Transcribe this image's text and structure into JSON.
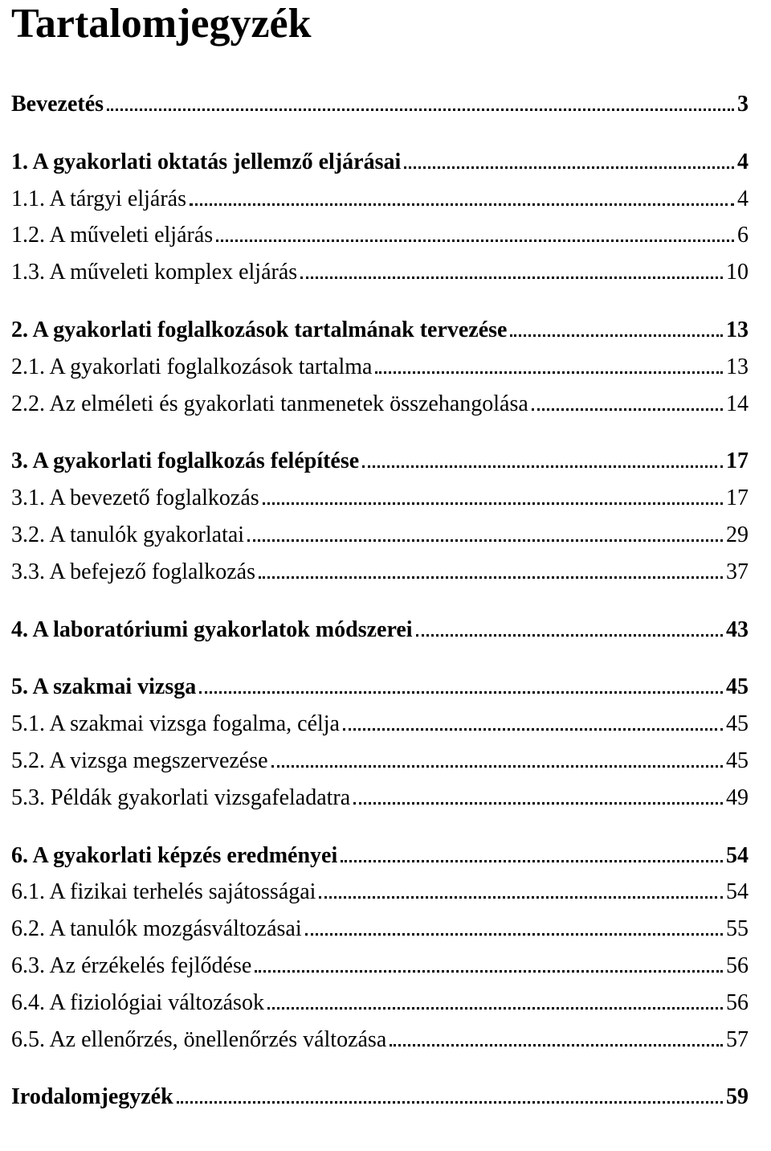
{
  "title": "Tartalomjegyzék",
  "text_color": "#000000",
  "background_color": "#ffffff",
  "title_fontsize": 52,
  "entry_fontsize": 28,
  "dot_leader_color": "#000000",
  "entries": [
    {
      "label": "Bevezetés",
      "page": "3",
      "bold": true,
      "gap_before": false
    },
    {
      "label": "1. A gyakorlati oktatás jellemző eljárásai",
      "page": "4",
      "bold": true,
      "gap_before": true
    },
    {
      "label": "1.1. A tárgyi eljárás",
      "page": "4",
      "bold": false,
      "gap_before": false
    },
    {
      "label": "1.2. A műveleti eljárás",
      "page": "6",
      "bold": false,
      "gap_before": false
    },
    {
      "label": "1.3. A műveleti komplex eljárás",
      "page": "10",
      "bold": false,
      "gap_before": false
    },
    {
      "label": "2. A gyakorlati foglalkozások tartalmának tervezése",
      "page": "13",
      "bold": true,
      "gap_before": true
    },
    {
      "label": "2.1. A gyakorlati foglalkozások tartalma",
      "page": "13",
      "bold": false,
      "gap_before": false
    },
    {
      "label": "2.2. Az elméleti és gyakorlati tanmenetek összehangolása",
      "page": "14",
      "bold": false,
      "gap_before": false
    },
    {
      "label": "3. A gyakorlati foglalkozás felépítése",
      "page": "17",
      "bold": true,
      "gap_before": true
    },
    {
      "label": "3.1. A bevezető foglalkozás",
      "page": "17",
      "bold": false,
      "gap_before": false
    },
    {
      "label": "3.2. A tanulók gyakorlatai",
      "page": "29",
      "bold": false,
      "gap_before": false
    },
    {
      "label": "3.3. A befejező foglalkozás",
      "page": "37",
      "bold": false,
      "gap_before": false
    },
    {
      "label": "4. A laboratóriumi gyakorlatok módszerei",
      "page": "43",
      "bold": true,
      "gap_before": true
    },
    {
      "label": "5. A szakmai vizsga",
      "page": "45",
      "bold": true,
      "gap_before": true
    },
    {
      "label": "5.1. A szakmai vizsga fogalma, célja",
      "page": "45",
      "bold": false,
      "gap_before": false
    },
    {
      "label": "5.2. A vizsga megszervezése",
      "page": "45",
      "bold": false,
      "gap_before": false
    },
    {
      "label": "5.3. Példák gyakorlati vizsgafeladatra",
      "page": "49",
      "bold": false,
      "gap_before": false
    },
    {
      "label": "6. A gyakorlati képzés eredményei",
      "page": "54",
      "bold": true,
      "gap_before": true
    },
    {
      "label": "6.1. A fizikai terhelés sajátosságai",
      "page": "54",
      "bold": false,
      "gap_before": false
    },
    {
      "label": "6.2. A tanulók mozgásváltozásai",
      "page": "55",
      "bold": false,
      "gap_before": false
    },
    {
      "label": "6.3. Az érzékelés fejlődése",
      "page": "56",
      "bold": false,
      "gap_before": false
    },
    {
      "label": "6.4. A fiziológiai változások",
      "page": "56",
      "bold": false,
      "gap_before": false
    },
    {
      "label": "6.5. Az ellenőrzés, önellenőrzés változása",
      "page": "57",
      "bold": false,
      "gap_before": false
    },
    {
      "label": "Irodalomjegyzék",
      "page": "59",
      "bold": true,
      "gap_before": true
    }
  ]
}
